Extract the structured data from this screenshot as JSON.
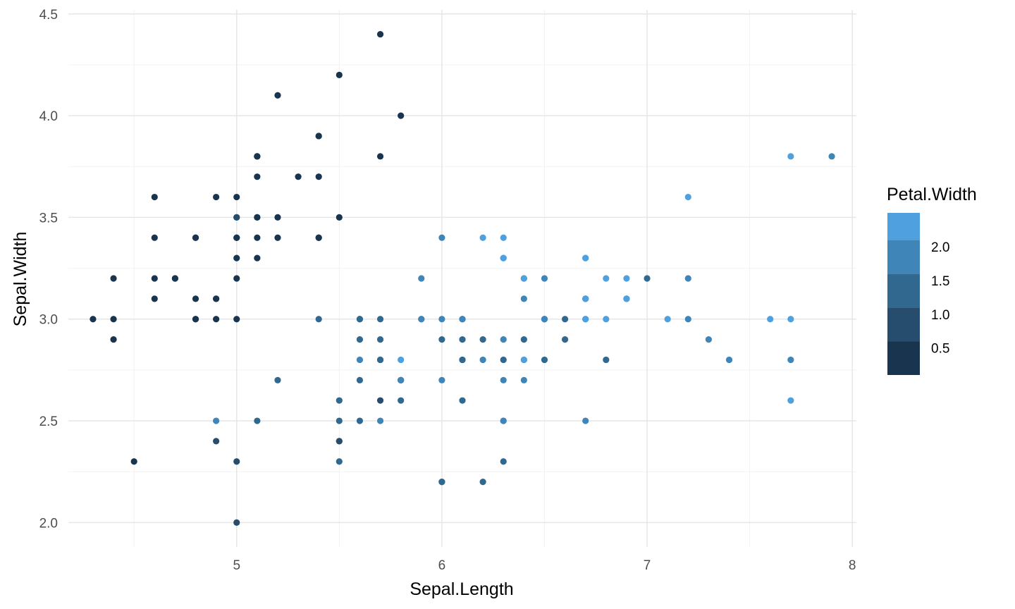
{
  "chart_data": {
    "type": "scatter",
    "title": "",
    "xlabel": "Sepal.Length",
    "ylabel": "Sepal.Width",
    "xlim": [
      4.18,
      8.02
    ],
    "ylim": [
      1.88,
      4.52
    ],
    "x_ticks": [
      5,
      6,
      7,
      8
    ],
    "x_tick_labels": [
      "5",
      "6",
      "7",
      "8"
    ],
    "y_ticks": [
      2.0,
      2.5,
      3.0,
      3.5,
      4.0,
      4.5
    ],
    "y_tick_labels": [
      "2.0",
      "2.5",
      "3.0",
      "3.5",
      "4.0",
      "4.5"
    ],
    "grid": true,
    "color_variable": "Petal.Width",
    "legend": {
      "title": "Petal.Width",
      "placement": "right",
      "ticks": [
        0.5,
        1.0,
        1.5,
        2.0
      ],
      "tick_labels": [
        "0.5",
        "1.0",
        "1.5",
        "2.0"
      ],
      "bins": [
        0.1,
        0.6,
        1.1,
        1.6,
        2.1,
        2.5
      ],
      "colors": [
        "#18344e",
        "#264d6e",
        "#316890",
        "#3f85b7",
        "#4ea0df"
      ]
    },
    "points": [
      {
        "x": 5.1,
        "y": 3.5,
        "c": 0.2
      },
      {
        "x": 4.9,
        "y": 3.0,
        "c": 0.2
      },
      {
        "x": 4.7,
        "y": 3.2,
        "c": 0.2
      },
      {
        "x": 4.6,
        "y": 3.1,
        "c": 0.2
      },
      {
        "x": 5.0,
        "y": 3.6,
        "c": 0.2
      },
      {
        "x": 5.4,
        "y": 3.9,
        "c": 0.4
      },
      {
        "x": 4.6,
        "y": 3.4,
        "c": 0.3
      },
      {
        "x": 5.0,
        "y": 3.4,
        "c": 0.2
      },
      {
        "x": 4.4,
        "y": 2.9,
        "c": 0.2
      },
      {
        "x": 4.9,
        "y": 3.1,
        "c": 0.1
      },
      {
        "x": 5.4,
        "y": 3.7,
        "c": 0.2
      },
      {
        "x": 4.8,
        "y": 3.4,
        "c": 0.2
      },
      {
        "x": 4.8,
        "y": 3.0,
        "c": 0.1
      },
      {
        "x": 4.3,
        "y": 3.0,
        "c": 0.1
      },
      {
        "x": 5.8,
        "y": 4.0,
        "c": 0.2
      },
      {
        "x": 5.7,
        "y": 4.4,
        "c": 0.4
      },
      {
        "x": 5.4,
        "y": 3.9,
        "c": 0.4
      },
      {
        "x": 5.1,
        "y": 3.5,
        "c": 0.3
      },
      {
        "x": 5.7,
        "y": 3.8,
        "c": 0.3
      },
      {
        "x": 5.1,
        "y": 3.8,
        "c": 0.3
      },
      {
        "x": 5.4,
        "y": 3.4,
        "c": 0.2
      },
      {
        "x": 5.1,
        "y": 3.7,
        "c": 0.4
      },
      {
        "x": 4.6,
        "y": 3.6,
        "c": 0.2
      },
      {
        "x": 5.1,
        "y": 3.3,
        "c": 0.5
      },
      {
        "x": 4.8,
        "y": 3.4,
        "c": 0.2
      },
      {
        "x": 5.0,
        "y": 3.0,
        "c": 0.2
      },
      {
        "x": 5.0,
        "y": 3.4,
        "c": 0.4
      },
      {
        "x": 5.2,
        "y": 3.5,
        "c": 0.2
      },
      {
        "x": 5.2,
        "y": 3.4,
        "c": 0.2
      },
      {
        "x": 4.7,
        "y": 3.2,
        "c": 0.2
      },
      {
        "x": 4.8,
        "y": 3.1,
        "c": 0.2
      },
      {
        "x": 5.4,
        "y": 3.4,
        "c": 0.4
      },
      {
        "x": 5.2,
        "y": 4.1,
        "c": 0.1
      },
      {
        "x": 5.5,
        "y": 4.2,
        "c": 0.2
      },
      {
        "x": 4.9,
        "y": 3.1,
        "c": 0.2
      },
      {
        "x": 5.0,
        "y": 3.2,
        "c": 0.2
      },
      {
        "x": 5.5,
        "y": 3.5,
        "c": 0.2
      },
      {
        "x": 4.9,
        "y": 3.6,
        "c": 0.1
      },
      {
        "x": 4.4,
        "y": 3.0,
        "c": 0.2
      },
      {
        "x": 5.1,
        "y": 3.4,
        "c": 0.2
      },
      {
        "x": 5.0,
        "y": 3.5,
        "c": 0.3
      },
      {
        "x": 4.5,
        "y": 2.3,
        "c": 0.3
      },
      {
        "x": 4.4,
        "y": 3.2,
        "c": 0.2
      },
      {
        "x": 5.0,
        "y": 3.5,
        "c": 0.6
      },
      {
        "x": 5.1,
        "y": 3.8,
        "c": 0.4
      },
      {
        "x": 4.8,
        "y": 3.0,
        "c": 0.3
      },
      {
        "x": 5.1,
        "y": 3.8,
        "c": 0.2
      },
      {
        "x": 4.6,
        "y": 3.2,
        "c": 0.2
      },
      {
        "x": 5.3,
        "y": 3.7,
        "c": 0.2
      },
      {
        "x": 5.0,
        "y": 3.3,
        "c": 0.2
      },
      {
        "x": 7.0,
        "y": 3.2,
        "c": 1.4
      },
      {
        "x": 6.4,
        "y": 3.2,
        "c": 1.5
      },
      {
        "x": 6.9,
        "y": 3.1,
        "c": 1.5
      },
      {
        "x": 5.5,
        "y": 2.3,
        "c": 1.3
      },
      {
        "x": 6.5,
        "y": 2.8,
        "c": 1.5
      },
      {
        "x": 5.7,
        "y": 2.8,
        "c": 1.3
      },
      {
        "x": 6.3,
        "y": 3.3,
        "c": 1.6
      },
      {
        "x": 4.9,
        "y": 2.4,
        "c": 1.0
      },
      {
        "x": 6.6,
        "y": 2.9,
        "c": 1.3
      },
      {
        "x": 5.2,
        "y": 2.7,
        "c": 1.4
      },
      {
        "x": 5.0,
        "y": 2.0,
        "c": 1.0
      },
      {
        "x": 5.9,
        "y": 3.0,
        "c": 1.5
      },
      {
        "x": 6.0,
        "y": 2.2,
        "c": 1.0
      },
      {
        "x": 6.1,
        "y": 2.9,
        "c": 1.4
      },
      {
        "x": 5.6,
        "y": 2.9,
        "c": 1.3
      },
      {
        "x": 6.7,
        "y": 3.1,
        "c": 1.4
      },
      {
        "x": 5.6,
        "y": 3.0,
        "c": 1.5
      },
      {
        "x": 5.8,
        "y": 2.7,
        "c": 1.0
      },
      {
        "x": 6.2,
        "y": 2.2,
        "c": 1.5
      },
      {
        "x": 5.6,
        "y": 2.5,
        "c": 1.1
      },
      {
        "x": 5.9,
        "y": 3.2,
        "c": 1.8
      },
      {
        "x": 6.1,
        "y": 2.8,
        "c": 1.3
      },
      {
        "x": 6.3,
        "y": 2.5,
        "c": 1.5
      },
      {
        "x": 6.1,
        "y": 2.8,
        "c": 1.2
      },
      {
        "x": 6.4,
        "y": 2.9,
        "c": 1.3
      },
      {
        "x": 6.6,
        "y": 3.0,
        "c": 1.4
      },
      {
        "x": 6.8,
        "y": 2.8,
        "c": 1.4
      },
      {
        "x": 6.7,
        "y": 3.0,
        "c": 1.7
      },
      {
        "x": 6.0,
        "y": 2.9,
        "c": 1.5
      },
      {
        "x": 5.7,
        "y": 2.6,
        "c": 1.0
      },
      {
        "x": 5.5,
        "y": 2.4,
        "c": 1.1
      },
      {
        "x": 5.5,
        "y": 2.4,
        "c": 1.0
      },
      {
        "x": 5.8,
        "y": 2.7,
        "c": 1.2
      },
      {
        "x": 6.0,
        "y": 2.7,
        "c": 1.6
      },
      {
        "x": 5.4,
        "y": 3.0,
        "c": 1.5
      },
      {
        "x": 6.0,
        "y": 3.4,
        "c": 1.6
      },
      {
        "x": 6.7,
        "y": 3.1,
        "c": 1.5
      },
      {
        "x": 6.3,
        "y": 2.3,
        "c": 1.3
      },
      {
        "x": 5.6,
        "y": 3.0,
        "c": 1.3
      },
      {
        "x": 5.5,
        "y": 2.5,
        "c": 1.3
      },
      {
        "x": 5.5,
        "y": 2.6,
        "c": 1.2
      },
      {
        "x": 6.1,
        "y": 3.0,
        "c": 1.4
      },
      {
        "x": 5.8,
        "y": 2.6,
        "c": 1.2
      },
      {
        "x": 5.0,
        "y": 2.3,
        "c": 1.0
      },
      {
        "x": 5.6,
        "y": 2.7,
        "c": 1.3
      },
      {
        "x": 5.7,
        "y": 3.0,
        "c": 1.2
      },
      {
        "x": 5.7,
        "y": 2.9,
        "c": 1.3
      },
      {
        "x": 6.2,
        "y": 2.9,
        "c": 1.3
      },
      {
        "x": 5.1,
        "y": 2.5,
        "c": 1.1
      },
      {
        "x": 5.7,
        "y": 2.8,
        "c": 1.3
      },
      {
        "x": 6.3,
        "y": 3.3,
        "c": 2.5
      },
      {
        "x": 5.8,
        "y": 2.7,
        "c": 1.9
      },
      {
        "x": 7.1,
        "y": 3.0,
        "c": 2.1
      },
      {
        "x": 6.3,
        "y": 2.9,
        "c": 1.8
      },
      {
        "x": 6.5,
        "y": 3.0,
        "c": 2.2
      },
      {
        "x": 7.6,
        "y": 3.0,
        "c": 2.1
      },
      {
        "x": 4.9,
        "y": 2.5,
        "c": 1.7
      },
      {
        "x": 7.3,
        "y": 2.9,
        "c": 1.8
      },
      {
        "x": 6.7,
        "y": 2.5,
        "c": 1.8
      },
      {
        "x": 7.2,
        "y": 3.6,
        "c": 2.5
      },
      {
        "x": 6.5,
        "y": 3.2,
        "c": 2.0
      },
      {
        "x": 6.4,
        "y": 2.7,
        "c": 1.9
      },
      {
        "x": 6.8,
        "y": 3.0,
        "c": 2.1
      },
      {
        "x": 5.7,
        "y": 2.5,
        "c": 2.0
      },
      {
        "x": 5.8,
        "y": 2.8,
        "c": 2.4
      },
      {
        "x": 6.4,
        "y": 3.2,
        "c": 2.3
      },
      {
        "x": 6.5,
        "y": 3.0,
        "c": 1.8
      },
      {
        "x": 7.7,
        "y": 3.8,
        "c": 2.2
      },
      {
        "x": 7.7,
        "y": 2.6,
        "c": 2.3
      },
      {
        "x": 6.0,
        "y": 2.2,
        "c": 1.5
      },
      {
        "x": 6.9,
        "y": 3.2,
        "c": 2.3
      },
      {
        "x": 5.6,
        "y": 2.8,
        "c": 2.0
      },
      {
        "x": 7.7,
        "y": 2.8,
        "c": 2.0
      },
      {
        "x": 6.3,
        "y": 2.7,
        "c": 1.8
      },
      {
        "x": 6.7,
        "y": 3.3,
        "c": 2.1
      },
      {
        "x": 7.2,
        "y": 3.2,
        "c": 1.8
      },
      {
        "x": 6.2,
        "y": 2.8,
        "c": 1.8
      },
      {
        "x": 6.1,
        "y": 3.0,
        "c": 1.8
      },
      {
        "x": 6.4,
        "y": 2.8,
        "c": 2.1
      },
      {
        "x": 7.2,
        "y": 3.0,
        "c": 1.6
      },
      {
        "x": 7.4,
        "y": 2.8,
        "c": 1.9
      },
      {
        "x": 7.9,
        "y": 3.8,
        "c": 2.0
      },
      {
        "x": 6.4,
        "y": 2.8,
        "c": 2.2
      },
      {
        "x": 6.3,
        "y": 2.8,
        "c": 1.5
      },
      {
        "x": 6.1,
        "y": 2.6,
        "c": 1.4
      },
      {
        "x": 7.7,
        "y": 3.0,
        "c": 2.3
      },
      {
        "x": 6.3,
        "y": 3.4,
        "c": 2.4
      },
      {
        "x": 6.4,
        "y": 3.1,
        "c": 1.8
      },
      {
        "x": 6.0,
        "y": 3.0,
        "c": 1.8
      },
      {
        "x": 6.9,
        "y": 3.1,
        "c": 2.1
      },
      {
        "x": 6.7,
        "y": 3.1,
        "c": 2.4
      },
      {
        "x": 6.9,
        "y": 3.1,
        "c": 2.3
      },
      {
        "x": 5.8,
        "y": 2.7,
        "c": 1.9
      },
      {
        "x": 6.8,
        "y": 3.2,
        "c": 2.3
      },
      {
        "x": 6.7,
        "y": 3.3,
        "c": 2.5
      },
      {
        "x": 6.7,
        "y": 3.0,
        "c": 2.3
      },
      {
        "x": 6.3,
        "y": 2.5,
        "c": 1.9
      },
      {
        "x": 6.5,
        "y": 3.0,
        "c": 2.0
      },
      {
        "x": 6.2,
        "y": 3.4,
        "c": 2.3
      },
      {
        "x": 5.9,
        "y": 3.0,
        "c": 1.8
      }
    ]
  }
}
